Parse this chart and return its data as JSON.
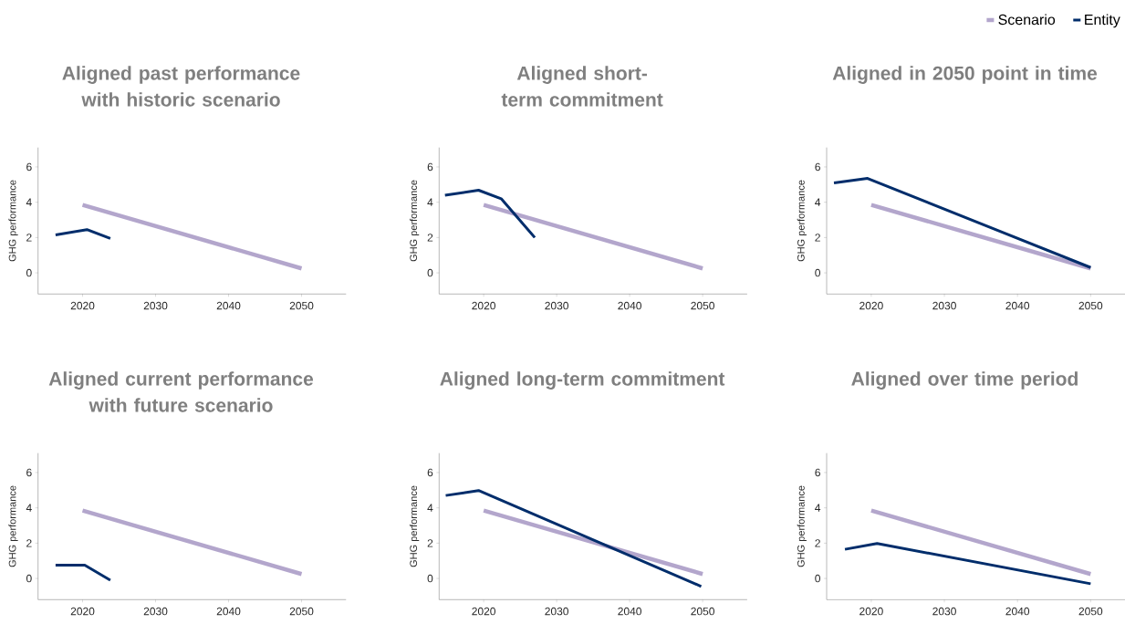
{
  "chart_data": [
    {
      "type": "line",
      "title": "Aligned past performance with historic scenario",
      "ylabel": "GHG performance",
      "xlim": [
        2013.9,
        2056.1
      ],
      "ylim": [
        -1.2,
        7.1
      ],
      "xticks": [
        2020,
        2030,
        2040,
        2050
      ],
      "yticks": [
        0,
        2,
        4,
        6
      ],
      "grid": false,
      "series": [
        {
          "color": "#b3a6cc",
          "x": [
            2020,
            2050
          ],
          "values": [
            3.85,
            0.25
          ]
        },
        {
          "color": "#002d6b",
          "x": [
            2016.3,
            2020.6,
            2023.8
          ],
          "values": [
            2.15,
            2.45,
            1.95
          ]
        }
      ]
    },
    {
      "type": "line",
      "title": "Aligned short-term commitment",
      "ylabel": "GHG performance",
      "xlim": [
        2013.9,
        2056.1
      ],
      "ylim": [
        -1.2,
        7.1
      ],
      "xticks": [
        2020,
        2030,
        2040,
        2050
      ],
      "yticks": [
        0,
        2,
        4,
        6
      ],
      "grid": false,
      "series": [
        {
          "color": "#b3a6cc",
          "x": [
            2020,
            2050
          ],
          "values": [
            3.85,
            0.25
          ]
        },
        {
          "color": "#002d6b",
          "x": [
            2014.7,
            2019.3,
            2022.4,
            2027.0
          ],
          "values": [
            4.4,
            4.68,
            4.2,
            2.0
          ]
        }
      ]
    },
    {
      "type": "line",
      "title": "Aligned in 2050 point in time",
      "ylabel": "GHG performance",
      "xlim": [
        2013.9,
        2054.7
      ],
      "ylim": [
        -1.2,
        7.1
      ],
      "xticks": [
        2020,
        2030,
        2040,
        2050
      ],
      "yticks": [
        0,
        2,
        4,
        6
      ],
      "grid": false,
      "legend": "top right",
      "series": [
        {
          "name": "Scenario",
          "color": "#b3a6cc",
          "x": [
            2020,
            2050
          ],
          "values": [
            3.85,
            0.25
          ]
        },
        {
          "name": "Entity",
          "color": "#002d6b",
          "x": [
            2014.9,
            2019.5,
            2050
          ],
          "values": [
            5.1,
            5.35,
            0.3
          ]
        }
      ]
    },
    {
      "type": "line",
      "title": "Aligned current performance with future scenario",
      "ylabel": "GHG performance",
      "xlim": [
        2013.9,
        2056.1
      ],
      "ylim": [
        -1.2,
        7.1
      ],
      "xticks": [
        2020,
        2030,
        2040,
        2050
      ],
      "yticks": [
        0,
        2,
        4,
        6
      ],
      "grid": false,
      "series": [
        {
          "color": "#b3a6cc",
          "x": [
            2020,
            2050
          ],
          "values": [
            3.85,
            0.25
          ]
        },
        {
          "color": "#002d6b",
          "x": [
            2016.3,
            2020.3,
            2023.8
          ],
          "values": [
            0.75,
            0.75,
            -0.1
          ]
        }
      ]
    },
    {
      "type": "line",
      "title": "Aligned long-term commitment",
      "ylabel": "GHG performance",
      "xlim": [
        2013.9,
        2056.1
      ],
      "ylim": [
        -1.2,
        7.1
      ],
      "xticks": [
        2020,
        2030,
        2040,
        2050
      ],
      "yticks": [
        0,
        2,
        4,
        6
      ],
      "grid": false,
      "series": [
        {
          "color": "#b3a6cc",
          "x": [
            2020,
            2050
          ],
          "values": [
            3.85,
            0.25
          ]
        },
        {
          "color": "#002d6b",
          "x": [
            2014.8,
            2019.3,
            2049.8
          ],
          "values": [
            4.7,
            4.98,
            -0.45
          ]
        }
      ]
    },
    {
      "type": "line",
      "title": "Aligned over time period",
      "ylabel": "GHG performance",
      "xlim": [
        2013.9,
        2054.7
      ],
      "ylim": [
        -1.2,
        7.1
      ],
      "xticks": [
        2020,
        2030,
        2040,
        2050
      ],
      "yticks": [
        0,
        2,
        4,
        6
      ],
      "grid": false,
      "series": [
        {
          "color": "#b3a6cc",
          "x": [
            2020,
            2050
          ],
          "values": [
            3.85,
            0.25
          ]
        },
        {
          "color": "#002d6b",
          "x": [
            2016.4,
            2020.8,
            2050
          ],
          "values": [
            1.65,
            1.98,
            -0.3
          ]
        }
      ]
    }
  ]
}
